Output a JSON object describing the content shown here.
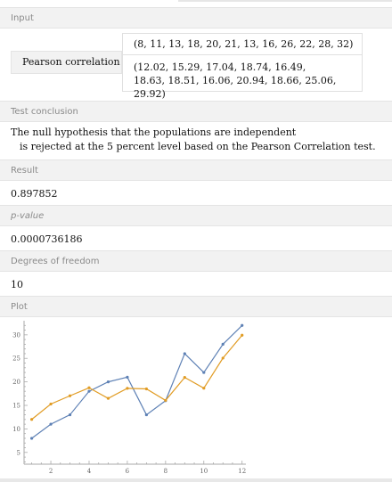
{
  "pods": {
    "input": {
      "title": "Input",
      "function_label": "Pearson correlation",
      "list1": "(8, 11, 13, 18, 20, 21, 13, 16, 26, 22, 28, 32)",
      "list2_line1": "(12.02, 15.29, 17.04, 18.74, 16.49,",
      "list2_line2": "18.63, 18.51, 16.06, 20.94, 18.66, 25.06, 29.92)"
    },
    "conclusion": {
      "title": "Test conclusion",
      "line1": "The null hypothesis that the populations are independent",
      "line2": "is rejected at the 5 percent level based on the Pearson Correlation test."
    },
    "result": {
      "title": "Result",
      "value": "0.897852"
    },
    "pvalue": {
      "title": "p-value",
      "value": "0.0000736186"
    },
    "dof": {
      "title": "Degrees of freedom",
      "value": "10"
    },
    "plot": {
      "title": "Plot"
    }
  },
  "colors": {
    "series1": "#5e81b5",
    "series2": "#e19c24",
    "pod_header_bg": "#f2f2f2"
  },
  "chart_data": {
    "type": "line",
    "x": [
      1,
      2,
      3,
      4,
      5,
      6,
      7,
      8,
      9,
      10,
      11,
      12
    ],
    "series": [
      {
        "values": [
          8,
          11,
          13,
          18,
          20,
          21,
          13,
          16,
          26,
          22,
          28,
          32
        ]
      },
      {
        "values": [
          12.02,
          15.29,
          17.04,
          18.74,
          16.49,
          18.63,
          18.51,
          16.06,
          20.94,
          18.66,
          25.06,
          29.92
        ]
      }
    ],
    "xticks": [
      "2",
      "4",
      "6",
      "8",
      "10",
      "12"
    ],
    "yticks": [
      "5",
      "10",
      "15",
      "20",
      "25",
      "30"
    ],
    "xlim": [
      0.6,
      12.2
    ],
    "ylim": [
      2.5,
      33
    ],
    "grid": false
  }
}
